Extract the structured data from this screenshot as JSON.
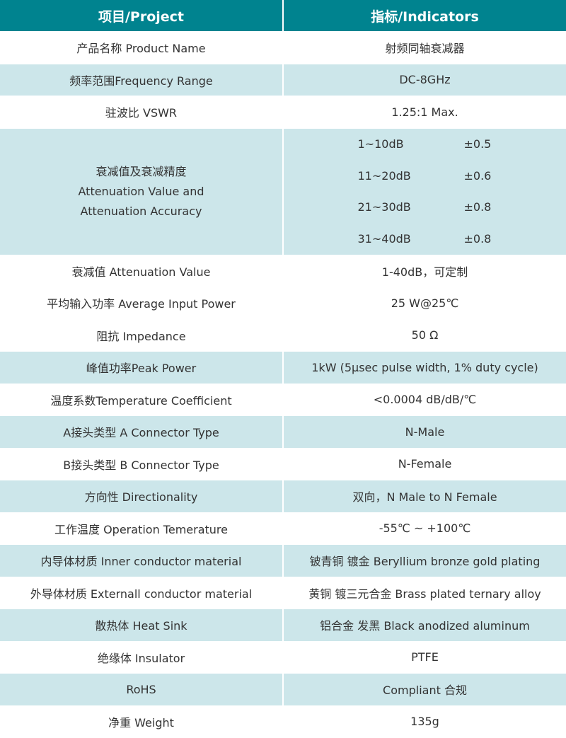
{
  "header": {
    "project": "项目/Project",
    "indicators": "指标/Indicators"
  },
  "colors": {
    "header_bg": "#00838f",
    "alt_row_bg": "#cce6ea",
    "text": "#333333"
  },
  "rows_before": [
    {
      "label": "产品名称 Product Name",
      "value": "射频同轴衰减器",
      "shaded": false
    },
    {
      "label": "频率范围Frequency Range",
      "value": "DC-8GHz",
      "shaded": true
    },
    {
      "label": "驻波比 VSWR",
      "value": "1.25:1 Max.",
      "shaded": false
    }
  ],
  "attenuation": {
    "label_cn": "衰减值及衰减精度",
    "label_en1": "Attenuation Value and",
    "label_en2": "Attenuation Accuracy",
    "ranges": [
      {
        "range": "1~10dB",
        "tolerance": "±0.5"
      },
      {
        "range": "11~20dB",
        "tolerance": "±0.6"
      },
      {
        "range": "21~30dB",
        "tolerance": "±0.8"
      },
      {
        "range": "31~40dB",
        "tolerance": "±0.8"
      }
    ]
  },
  "rows_after": [
    {
      "label": "衰减值 Attenuation Value",
      "value": "1-40dB，可定制",
      "shaded": false
    },
    {
      "label": "平均输入功率 Average Input Power",
      "value": "25 W@25℃",
      "shaded": false
    },
    {
      "label": "阻抗 Impedance",
      "value": "50 Ω",
      "shaded": false
    },
    {
      "label": "峰值功率Peak Power",
      "value": "1kW (5μsec pulse width, 1% duty cycle)",
      "shaded": true
    },
    {
      "label": "温度系数Temperature Coefficient",
      "value": "<0.0004 dB/dB/℃",
      "shaded": false
    },
    {
      "label": "A接头类型 A Connector Type",
      "value": "N-Male",
      "shaded": true
    },
    {
      "label": "B接头类型 B Connector Type",
      "value": "N-Female",
      "shaded": false
    },
    {
      "label": "方向性 Directionality",
      "value": "双向，N Male to N Female",
      "shaded": true
    },
    {
      "label": "工作温度 Operation Temerature",
      "value": "-55℃ ~ +100℃",
      "shaded": false
    },
    {
      "label": "内导体材质 Inner conductor material",
      "value": "铍青铜 镀金 Beryllium bronze gold plating",
      "shaded": true
    },
    {
      "label": "外导体材质 Externall conductor material",
      "value": "黄铜 镀三元合金 Brass plated ternary alloy",
      "shaded": false
    },
    {
      "label": "散热体 Heat Sink",
      "value": "铝合金 发黑 Black anodized aluminum",
      "shaded": true
    },
    {
      "label": "绝缘体 Insulator",
      "value": "PTFE",
      "shaded": false
    },
    {
      "label": "RoHS",
      "value": "Compliant 合规",
      "shaded": true
    },
    {
      "label": "净重 Weight",
      "value": "135g",
      "shaded": false
    }
  ]
}
